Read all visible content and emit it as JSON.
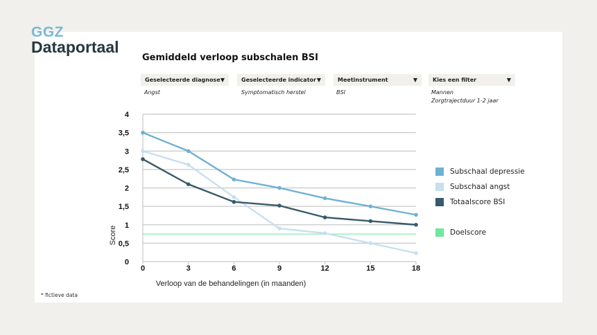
{
  "brand": {
    "line1": "GGZ",
    "line2": "Dataportaal"
  },
  "title": "Gemiddeld verloop subschalen BSI",
  "filters": [
    {
      "label": "Geselecteerde diagnose",
      "values": [
        "Angst"
      ]
    },
    {
      "label": "Geselecteerde indicator",
      "values": [
        "Symptomatisch herstel"
      ]
    },
    {
      "label": "Meetinstrument",
      "values": [
        "BSI"
      ]
    },
    {
      "label": "Kies een filter",
      "values": [
        "Mannen",
        "Zorgtrajectduur 1-2 jaar"
      ]
    }
  ],
  "dropdown_icon": "triangle-down",
  "footnote": "* fictieve data",
  "chart_data": {
    "type": "line",
    "title": "Gemiddeld verloop subschalen BSI",
    "xlabel": "Verloop van de behandelingen (in maanden)",
    "ylabel": "Score",
    "x": [
      0,
      3,
      6,
      9,
      12,
      15,
      18
    ],
    "xlim": [
      0,
      18
    ],
    "ylim": [
      0,
      4
    ],
    "yticks": [
      0,
      0.5,
      1,
      1.5,
      2,
      2.5,
      3,
      3.5,
      4
    ],
    "ytick_labels": [
      "0",
      "0,5",
      "1",
      "1,5",
      "2",
      "2,5",
      "3",
      "3,5",
      "4"
    ],
    "xtick_labels": [
      "0",
      "3",
      "6",
      "9",
      "12",
      "15",
      "18"
    ],
    "grid": true,
    "legend_position": "right",
    "series": [
      {
        "name": "Subschaal depressie",
        "color": "#6eb1d3",
        "values": [
          3.5,
          3.0,
          2.23,
          2.0,
          1.72,
          1.5,
          1.27
        ]
      },
      {
        "name": "Subschaal angst",
        "color": "#c7dfee",
        "values": [
          3.0,
          2.63,
          1.75,
          0.9,
          0.77,
          0.5,
          0.23
        ]
      },
      {
        "name": "Totaalscore BSI",
        "color": "#385a6a",
        "values": [
          2.78,
          2.1,
          1.62,
          1.52,
          1.2,
          1.1,
          1.0
        ]
      }
    ],
    "reference": {
      "name": "Doelscore",
      "color": "#6ee89a",
      "value": 0.75
    }
  }
}
